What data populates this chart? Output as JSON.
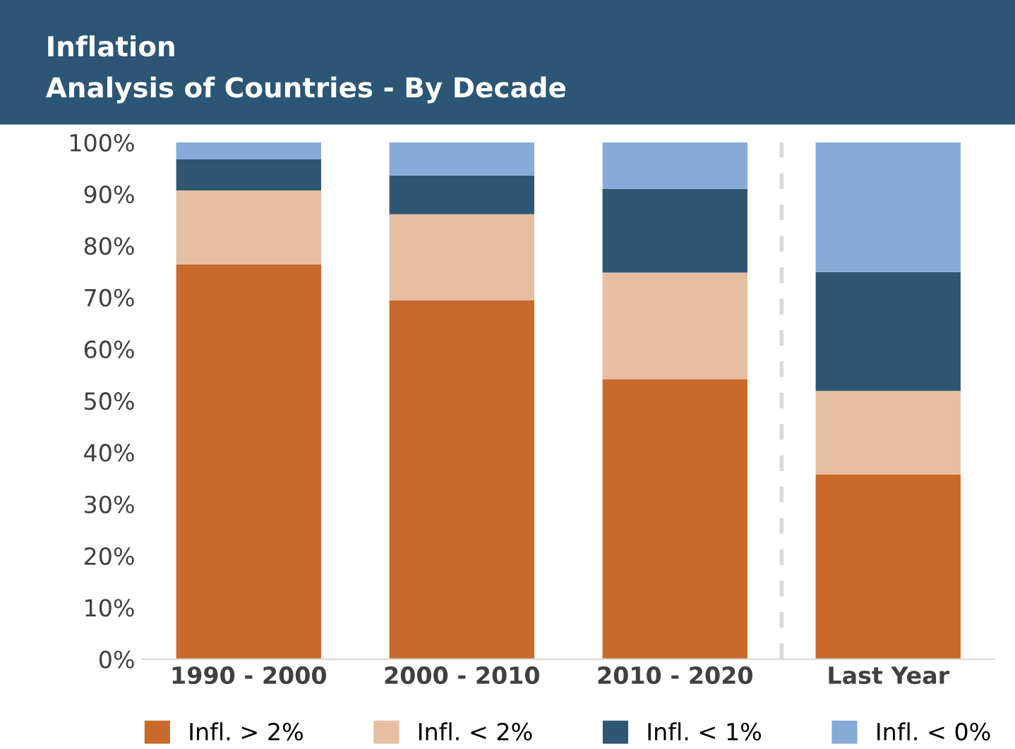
{
  "chart_data": {
    "type": "bar",
    "title": "Inflation",
    "subtitle": "Analysis of Countries - By Decade",
    "stacked": true,
    "categories": [
      "1990 - 2000",
      "2000 - 2010",
      "2010 - 2020",
      "Last Year"
    ],
    "series": [
      {
        "name": "Infl. > 2%",
        "color": "#c96a2c",
        "values": [
          76.4,
          69.4,
          54.2,
          35.7
        ]
      },
      {
        "name": "Infl. < 2%",
        "color": "#e6bea2",
        "values": [
          14.3,
          16.7,
          20.6,
          16.2
        ]
      },
      {
        "name": "Infl. < 1%",
        "color": "#2f5773",
        "values": [
          6.0,
          7.5,
          16.2,
          23.0
        ]
      },
      {
        "name": "Infl. < 0%",
        "color": "#87aad9",
        "values": [
          3.3,
          6.4,
          9.0,
          25.1
        ]
      }
    ],
    "ylim": [
      0,
      100
    ],
    "yticks": [
      {
        "value": 0,
        "label": "0%"
      },
      {
        "value": 10,
        "label": "10%"
      },
      {
        "value": 20,
        "label": "20%"
      },
      {
        "value": 30,
        "label": "30%"
      },
      {
        "value": 40,
        "label": "40%"
      },
      {
        "value": 50,
        "label": "50%"
      },
      {
        "value": 60,
        "label": "60%"
      },
      {
        "value": 70,
        "label": "70%"
      },
      {
        "value": 80,
        "label": "80%"
      },
      {
        "value": 90,
        "label": "90%"
      },
      {
        "value": 100,
        "label": "100%"
      }
    ],
    "grid": false,
    "legend": "bottom"
  }
}
